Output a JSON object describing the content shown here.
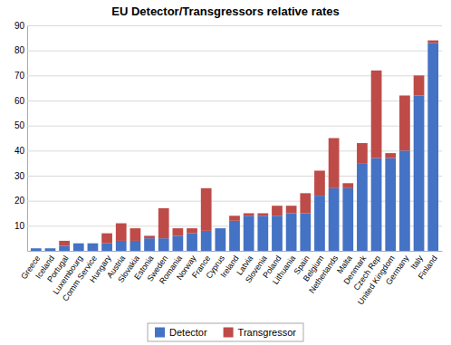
{
  "chart_data": {
    "type": "bar",
    "stacked": true,
    "title": "EU Detector/Transgressors relative rates",
    "categories": [
      "Greece",
      "Iceland",
      "Portugal",
      "Luxembourg",
      "Comm Service",
      "Hungary",
      "Austria",
      "Slovakia",
      "Estonia",
      "Sweden",
      "Romania",
      "Norway",
      "France",
      "Cyprus",
      "Ireland",
      "Latvia",
      "Slovenia",
      "Poland",
      "Lithuania",
      "Spain",
      "Belgium",
      "Netherlands",
      "Malta",
      "Denmark",
      "Czech Rep",
      "United Kingdom",
      "Germany",
      "Italy",
      "Finland"
    ],
    "series": [
      {
        "name": "Detector",
        "color": "#4472C4",
        "values": [
          1,
          1,
          2,
          3,
          3,
          3,
          4,
          4,
          5,
          5,
          6,
          7,
          8,
          9,
          12,
          14,
          14,
          14,
          15,
          15,
          22,
          25,
          25,
          35,
          37,
          37,
          40,
          62,
          83
        ]
      },
      {
        "name": "Transgressor",
        "color": "#BE4B48",
        "values": [
          0,
          0,
          2,
          0,
          0,
          4,
          7,
          5,
          1,
          12,
          3,
          2,
          17,
          0,
          2,
          1,
          1,
          4,
          3,
          8,
          10,
          20,
          2,
          8,
          35,
          2,
          22,
          8,
          1
        ]
      }
    ],
    "ylim": [
      0,
      90
    ],
    "yticks": [
      10,
      20,
      30,
      40,
      50,
      60,
      70,
      80,
      90
    ],
    "grid": true,
    "legend": "bottom"
  }
}
